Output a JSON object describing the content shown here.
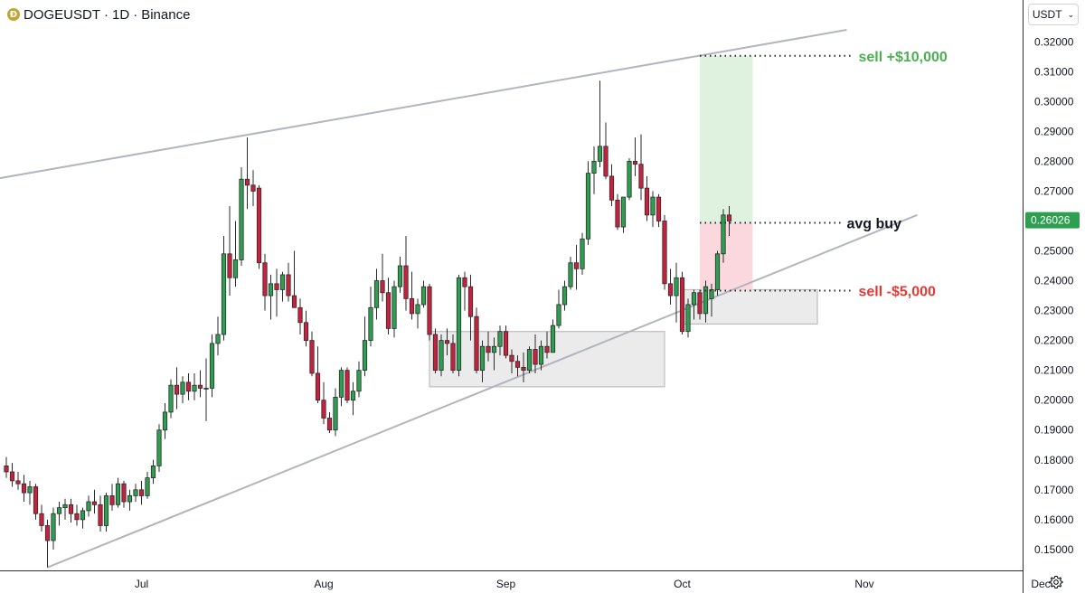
{
  "header": {
    "logo_glyph": "Ð",
    "symbol": "DOGEUSDT",
    "interval": "1D",
    "exchange": "Binance",
    "sep": "·"
  },
  "currency_button": {
    "label": "USDT",
    "chevron": "⌄"
  },
  "settings": {
    "icon": "gear-icon"
  },
  "colors": {
    "up": "#22ab94",
    "up_fill": "#2e9e50",
    "down": "#c8213d",
    "trendline": "#b2b5be",
    "zone_fill": "#ebebeb",
    "zone_border": "#bdbdbd",
    "profit_fill": "#dff2df",
    "loss_fill": "#fbd8de",
    "sell_profit_text": "#4caf50",
    "sell_loss_text": "#e53935",
    "avg_buy_text": "#131722",
    "price_tag_bg": "#2e9e50"
  },
  "chart_data": {
    "type": "candlestick",
    "symbol": "DOGEUSDT",
    "interval": "1D",
    "y_axis": {
      "min": 0.143,
      "max": 0.334,
      "ticks": [
        "0.15000",
        "0.16000",
        "0.17000",
        "0.18000",
        "0.19000",
        "0.20000",
        "0.21000",
        "0.22000",
        "0.23000",
        "0.24000",
        "0.25000",
        "0.26000",
        "0.27000",
        "0.28000",
        "0.29000",
        "0.30000",
        "0.31000",
        "0.32000"
      ]
    },
    "x_axis": {
      "start": "2024-06-08",
      "end": "2024-12-27",
      "labels": [
        {
          "label": "Jul",
          "date": "2024-07-01"
        },
        {
          "label": "Aug",
          "date": "2024-08-01"
        },
        {
          "label": "Sep",
          "date": "2024-09-01"
        },
        {
          "label": "Oct",
          "date": "2024-10-01"
        },
        {
          "label": "Nov",
          "date": "2024-11-01"
        },
        {
          "label": "Dec",
          "date": "2024-12-01"
        }
      ]
    },
    "current_price": "0.26026",
    "candles": {
      "start_date": "2024-06-08",
      "fields": [
        "open",
        "high",
        "low",
        "close"
      ],
      "ohlc": [
        [
          0.178,
          0.181,
          0.174,
          0.176
        ],
        [
          0.176,
          0.179,
          0.171,
          0.173
        ],
        [
          0.173,
          0.176,
          0.17,
          0.172
        ],
        [
          0.172,
          0.175,
          0.166,
          0.169
        ],
        [
          0.169,
          0.173,
          0.165,
          0.171
        ],
        [
          0.171,
          0.172,
          0.16,
          0.162
        ],
        [
          0.162,
          0.165,
          0.156,
          0.158
        ],
        [
          0.158,
          0.16,
          0.144,
          0.153
        ],
        [
          0.153,
          0.164,
          0.15,
          0.162
        ],
        [
          0.162,
          0.166,
          0.158,
          0.164
        ],
        [
          0.164,
          0.167,
          0.16,
          0.165
        ],
        [
          0.165,
          0.167,
          0.159,
          0.162
        ],
        [
          0.162,
          0.165,
          0.158,
          0.16
        ],
        [
          0.16,
          0.164,
          0.157,
          0.163
        ],
        [
          0.163,
          0.168,
          0.161,
          0.166
        ],
        [
          0.166,
          0.17,
          0.162,
          0.165
        ],
        [
          0.165,
          0.168,
          0.156,
          0.158
        ],
        [
          0.158,
          0.169,
          0.156,
          0.168
        ],
        [
          0.168,
          0.172,
          0.163,
          0.165
        ],
        [
          0.165,
          0.174,
          0.164,
          0.172
        ],
        [
          0.172,
          0.173,
          0.164,
          0.166
        ],
        [
          0.166,
          0.17,
          0.163,
          0.168
        ],
        [
          0.168,
          0.172,
          0.166,
          0.17
        ],
        [
          0.17,
          0.173,
          0.165,
          0.168
        ],
        [
          0.168,
          0.176,
          0.167,
          0.174
        ],
        [
          0.174,
          0.18,
          0.172,
          0.178
        ],
        [
          0.178,
          0.192,
          0.176,
          0.19
        ],
        [
          0.19,
          0.199,
          0.187,
          0.196
        ],
        [
          0.196,
          0.207,
          0.194,
          0.205
        ],
        [
          0.205,
          0.211,
          0.197,
          0.202
        ],
        [
          0.202,
          0.208,
          0.199,
          0.206
        ],
        [
          0.206,
          0.209,
          0.2,
          0.203
        ],
        [
          0.203,
          0.209,
          0.2,
          0.205
        ],
        [
          0.205,
          0.21,
          0.201,
          0.204
        ],
        [
          0.204,
          0.214,
          0.193,
          0.204
        ],
        [
          0.204,
          0.222,
          0.201,
          0.219
        ],
        [
          0.219,
          0.228,
          0.215,
          0.222
        ],
        [
          0.222,
          0.255,
          0.22,
          0.249
        ],
        [
          0.249,
          0.265,
          0.235,
          0.241
        ],
        [
          0.241,
          0.26,
          0.238,
          0.247
        ],
        [
          0.247,
          0.278,
          0.245,
          0.274
        ],
        [
          0.274,
          0.288,
          0.264,
          0.272
        ],
        [
          0.272,
          0.277,
          0.265,
          0.27
        ],
        [
          0.271,
          0.272,
          0.244,
          0.246
        ],
        [
          0.246,
          0.249,
          0.23,
          0.235
        ],
        [
          0.235,
          0.242,
          0.227,
          0.239
        ],
        [
          0.239,
          0.244,
          0.228,
          0.237
        ],
        [
          0.237,
          0.243,
          0.233,
          0.242
        ],
        [
          0.242,
          0.246,
          0.233,
          0.235
        ],
        [
          0.235,
          0.25,
          0.231,
          0.231
        ],
        [
          0.231,
          0.234,
          0.222,
          0.226
        ],
        [
          0.226,
          0.23,
          0.218,
          0.22
        ],
        [
          0.22,
          0.223,
          0.208,
          0.209
        ],
        [
          0.209,
          0.218,
          0.199,
          0.2
        ],
        [
          0.2,
          0.206,
          0.192,
          0.194
        ],
        [
          0.194,
          0.196,
          0.189,
          0.19
        ],
        [
          0.19,
          0.204,
          0.188,
          0.201
        ],
        [
          0.201,
          0.211,
          0.198,
          0.21
        ],
        [
          0.21,
          0.211,
          0.199,
          0.2
        ],
        [
          0.2,
          0.206,
          0.195,
          0.203
        ],
        [
          0.203,
          0.213,
          0.201,
          0.21
        ],
        [
          0.21,
          0.228,
          0.208,
          0.22
        ],
        [
          0.22,
          0.238,
          0.218,
          0.231
        ],
        [
          0.231,
          0.244,
          0.227,
          0.24
        ],
        [
          0.24,
          0.249,
          0.233,
          0.236
        ],
        [
          0.236,
          0.241,
          0.222,
          0.224
        ],
        [
          0.224,
          0.24,
          0.221,
          0.238
        ],
        [
          0.238,
          0.248,
          0.236,
          0.245
        ],
        [
          0.245,
          0.255,
          0.23,
          0.234
        ],
        [
          0.234,
          0.243,
          0.227,
          0.229
        ],
        [
          0.229,
          0.234,
          0.224,
          0.232
        ],
        [
          0.232,
          0.24,
          0.231,
          0.238
        ],
        [
          0.238,
          0.239,
          0.22,
          0.222
        ],
        [
          0.222,
          0.224,
          0.209,
          0.21
        ],
        [
          0.21,
          0.222,
          0.208,
          0.22
        ],
        [
          0.22,
          0.224,
          0.215,
          0.219
        ],
        [
          0.219,
          0.222,
          0.209,
          0.21
        ],
        [
          0.21,
          0.242,
          0.208,
          0.241
        ],
        [
          0.241,
          0.243,
          0.23,
          0.238
        ],
        [
          0.238,
          0.242,
          0.22,
          0.228
        ],
        [
          0.228,
          0.231,
          0.209,
          0.21
        ],
        [
          0.21,
          0.22,
          0.206,
          0.218
        ],
        [
          0.218,
          0.223,
          0.213,
          0.216
        ],
        [
          0.216,
          0.221,
          0.21,
          0.218
        ],
        [
          0.218,
          0.225,
          0.215,
          0.223
        ],
        [
          0.223,
          0.225,
          0.214,
          0.215
        ],
        [
          0.215,
          0.217,
          0.209,
          0.213
        ],
        [
          0.213,
          0.215,
          0.208,
          0.211
        ],
        [
          0.211,
          0.216,
          0.206,
          0.21
        ],
        [
          0.21,
          0.218,
          0.209,
          0.217
        ],
        [
          0.217,
          0.222,
          0.209,
          0.212
        ],
        [
          0.212,
          0.22,
          0.21,
          0.218
        ],
        [
          0.218,
          0.223,
          0.214,
          0.216
        ],
        [
          0.216,
          0.227,
          0.216,
          0.225
        ],
        [
          0.225,
          0.237,
          0.224,
          0.232
        ],
        [
          0.232,
          0.24,
          0.23,
          0.238
        ],
        [
          0.238,
          0.248,
          0.237,
          0.246
        ],
        [
          0.246,
          0.252,
          0.237,
          0.244
        ],
        [
          0.244,
          0.256,
          0.242,
          0.254
        ],
        [
          0.254,
          0.28,
          0.252,
          0.276
        ],
        [
          0.276,
          0.285,
          0.269,
          0.28
        ],
        [
          0.28,
          0.307,
          0.278,
          0.285
        ],
        [
          0.285,
          0.293,
          0.274,
          0.275
        ],
        [
          0.275,
          0.279,
          0.265,
          0.267
        ],
        [
          0.267,
          0.269,
          0.257,
          0.258
        ],
        [
          0.258,
          0.268,
          0.256,
          0.268
        ],
        [
          0.268,
          0.281,
          0.267,
          0.28
        ],
        [
          0.28,
          0.288,
          0.275,
          0.279
        ],
        [
          0.279,
          0.289,
          0.267,
          0.271
        ],
        [
          0.271,
          0.275,
          0.26,
          0.262
        ],
        [
          0.262,
          0.27,
          0.258,
          0.268
        ],
        [
          0.268,
          0.269,
          0.258,
          0.26
        ],
        [
          0.26,
          0.262,
          0.237,
          0.239
        ],
        [
          0.239,
          0.244,
          0.232,
          0.235
        ],
        [
          0.235,
          0.246,
          0.226,
          0.241
        ],
        [
          0.241,
          0.243,
          0.222,
          0.223
        ],
        [
          0.223,
          0.234,
          0.221,
          0.232
        ],
        [
          0.232,
          0.237,
          0.227,
          0.236
        ],
        [
          0.236,
          0.237,
          0.227,
          0.229
        ],
        [
          0.229,
          0.24,
          0.226,
          0.238
        ],
        [
          0.234,
          0.239,
          0.228,
          0.237
        ],
        [
          0.237,
          0.25,
          0.235,
          0.249
        ],
        [
          0.249,
          0.264,
          0.246,
          0.262
        ],
        [
          0.262,
          0.265,
          0.255,
          0.26
        ]
      ]
    },
    "trendlines": [
      {
        "from": {
          "date": "2024-06-03",
          "price": 0.273
        },
        "to": {
          "date": "2024-10-29",
          "price": 0.324
        }
      },
      {
        "from": {
          "date": "2024-06-15",
          "price": 0.144
        },
        "to": {
          "date": "2024-11-10",
          "price": 0.262
        }
      }
    ],
    "zones": [
      {
        "from_date": "2024-08-19",
        "to_date": "2024-09-28",
        "top": 0.223,
        "bottom": 0.2045
      },
      {
        "from_date": "2024-10-01",
        "to_date": "2024-10-24",
        "top": 0.237,
        "bottom": 0.2255
      }
    ],
    "position": {
      "from_date": "2024-10-04",
      "to_date": "2024-10-13",
      "entry": 0.2594,
      "target": 0.3153,
      "stop": 0.2367
    },
    "annotations": [
      {
        "text": "sell +$10,000",
        "price": 0.3153,
        "line_from_date": "2024-10-04",
        "line_to_date": "2024-10-30",
        "label_date": "2024-10-31",
        "color": "#4caf50"
      },
      {
        "text": "avg buy",
        "price": 0.2594,
        "line_from_date": "2024-10-04",
        "line_to_date": "2024-10-28",
        "label_date": "2024-10-29",
        "color": "#131722"
      },
      {
        "text": "sell -$5,000",
        "price": 0.2367,
        "line_from_date": "2024-10-04",
        "line_to_date": "2024-10-30",
        "label_date": "2024-10-31",
        "color": "#e53935"
      }
    ]
  }
}
